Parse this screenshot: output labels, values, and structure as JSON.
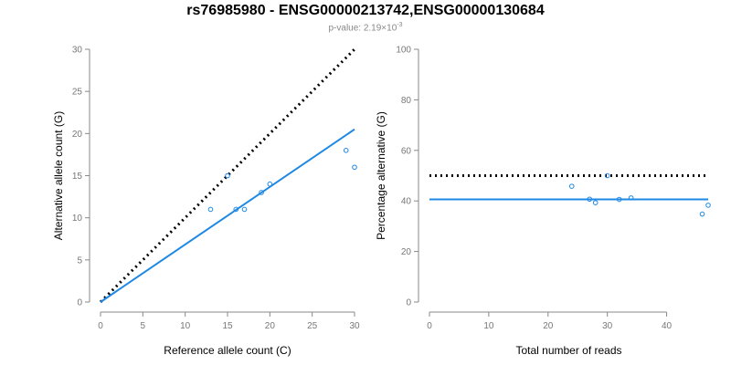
{
  "title": "rs76985980 - ENSG00000213742,ENSG00000130684",
  "subtitle": {
    "prefix": "p-value: 2.19×10",
    "exponent": "-3"
  },
  "colors": {
    "series": "#1E88E5",
    "reference": "#000000",
    "axis": "#888888"
  },
  "chart_data": [
    {
      "type": "scatter",
      "xlabel": "Reference allele count (C)",
      "ylabel": "Alternative allele count (G)",
      "xlim": [
        0,
        30
      ],
      "ylim": [
        0,
        30
      ],
      "xticks": [
        0,
        5,
        10,
        15,
        20,
        25,
        30
      ],
      "yticks": [
        0,
        5,
        10,
        15,
        20,
        25,
        30
      ],
      "grid": false,
      "points": [
        {
          "x": 13,
          "y": 11
        },
        {
          "x": 15,
          "y": 15
        },
        {
          "x": 16,
          "y": 11
        },
        {
          "x": 17,
          "y": 11
        },
        {
          "x": 19,
          "y": 13
        },
        {
          "x": 20,
          "y": 14
        },
        {
          "x": 29,
          "y": 18
        },
        {
          "x": 30,
          "y": 16
        }
      ],
      "fit_line": {
        "x": [
          0,
          30
        ],
        "y": [
          0,
          20.5
        ]
      },
      "reference_line": {
        "x": [
          0,
          30
        ],
        "y": [
          0,
          30
        ]
      }
    },
    {
      "type": "scatter",
      "xlabel": "Total number of reads",
      "ylabel": "Percentage alternative (G)",
      "xlim": [
        0,
        47
      ],
      "ylim": [
        0,
        100
      ],
      "xticks": [
        0,
        10,
        20,
        30,
        40
      ],
      "yticks": [
        0,
        20,
        40,
        60,
        80,
        100
      ],
      "grid": false,
      "points": [
        {
          "x": 24,
          "y": 45.8
        },
        {
          "x": 27,
          "y": 40.7
        },
        {
          "x": 28,
          "y": 39.3
        },
        {
          "x": 30,
          "y": 50
        },
        {
          "x": 32,
          "y": 40.6
        },
        {
          "x": 34,
          "y": 41.2
        },
        {
          "x": 46,
          "y": 34.8
        },
        {
          "x": 47,
          "y": 38.3
        }
      ],
      "fit_line": {
        "x": [
          0,
          47
        ],
        "y": [
          40.6,
          40.6
        ]
      },
      "reference_line": {
        "x": [
          0,
          47
        ],
        "y": [
          50,
          50
        ]
      }
    }
  ]
}
